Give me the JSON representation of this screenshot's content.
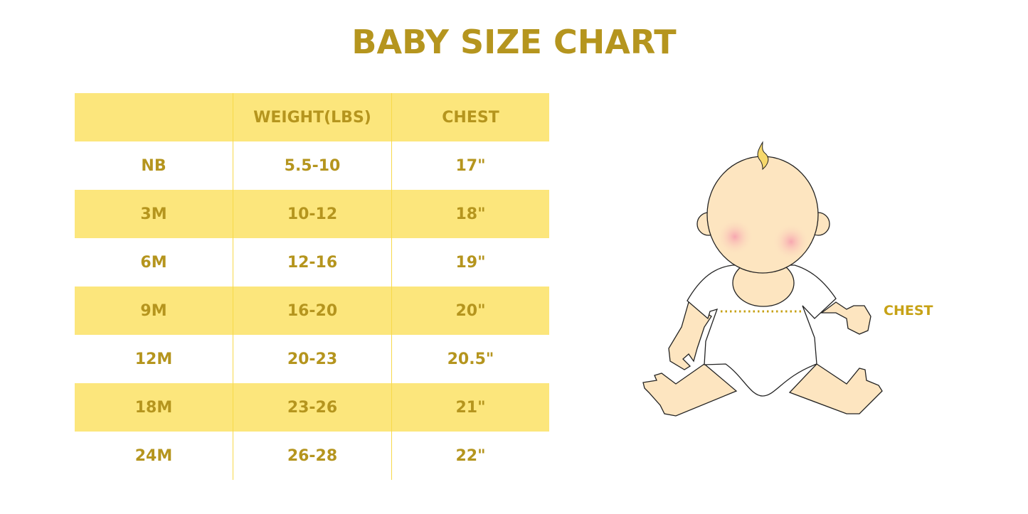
{
  "title": "BABY SIZE CHART",
  "table": {
    "headers": [
      "",
      "WEIGHT(LBS)",
      "CHEST"
    ],
    "rows": [
      [
        "NB",
        "5.5-10",
        "17\""
      ],
      [
        "3M",
        "10-12",
        "18\""
      ],
      [
        "6M",
        "12-16",
        "19\""
      ],
      [
        "9M",
        "16-20",
        "20\""
      ],
      [
        "12M",
        "20-23",
        "20.5\""
      ],
      [
        "18M",
        "23-26",
        "21\""
      ],
      [
        "24M",
        "26-28",
        "22\""
      ]
    ]
  },
  "illustration": {
    "chest_label": "CHEST"
  },
  "colors": {
    "text": "#b5951e",
    "stripe": "#fce67c",
    "divider": "#f7d94a"
  }
}
